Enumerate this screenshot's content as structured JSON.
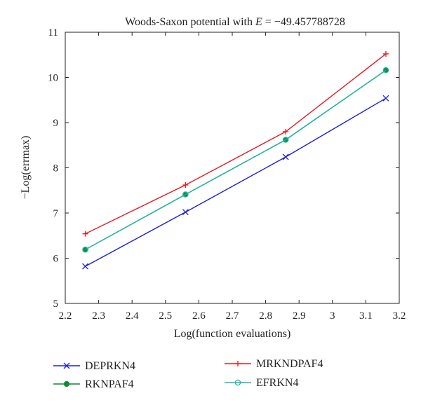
{
  "chart_data": {
    "type": "line",
    "title": {
      "prefix": "Woods-Saxon potential with ",
      "variable": "E",
      "suffix": " = −49.457788728"
    },
    "xlabel": "Log(function evaluations)",
    "ylabel": "−Log(errmax)",
    "xlim": [
      2.2,
      3.2
    ],
    "ylim": [
      5,
      11
    ],
    "xticks": [
      "2.2",
      "2.3",
      "2.4",
      "2.5",
      "2.6",
      "2.7",
      "2.8",
      "2.9",
      "3",
      "3.1",
      "3.2"
    ],
    "yticks": [
      "5",
      "6",
      "7",
      "8",
      "9",
      "10",
      "11"
    ],
    "x": [
      2.26,
      2.56,
      2.86,
      3.16
    ],
    "series": [
      {
        "name": "DEPRKN4",
        "values": [
          5.82,
          7.02,
          8.24,
          9.54
        ],
        "color": "#1f1fd6",
        "marker": "x"
      },
      {
        "name": "MRKNDPAF4",
        "values": [
          6.54,
          7.62,
          8.8,
          10.52
        ],
        "color": "#e31b23",
        "marker": "plus"
      },
      {
        "name": "RKNPAF4",
        "values": [
          6.19,
          7.41,
          8.62,
          10.16
        ],
        "color": "#0f8a30",
        "marker": "dot"
      },
      {
        "name": "EFRKN4",
        "values": [
          6.19,
          7.41,
          8.62,
          10.16
        ],
        "color": "#1fb5a6",
        "marker": "circle"
      }
    ],
    "grid": false,
    "legend_position": "bottom"
  }
}
